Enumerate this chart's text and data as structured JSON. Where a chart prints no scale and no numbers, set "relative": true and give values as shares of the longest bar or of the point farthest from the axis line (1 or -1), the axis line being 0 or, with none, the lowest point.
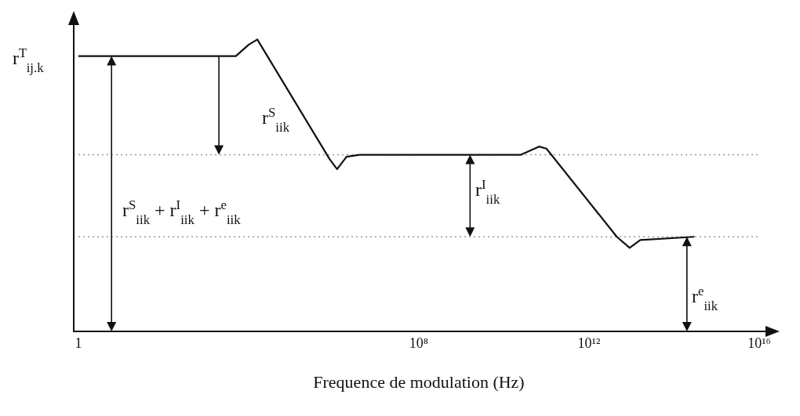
{
  "chart_data": {
    "type": "line",
    "relative": true,
    "xlabel": "Frequence de modulation (Hz)",
    "ylabel": "r$^{T}$$_{ij.k}$",
    "log": "x",
    "xlim": [
      1,
      1e+16
    ],
    "xticks": [
      1,
      {
        "value": 100000000.0,
        "label": "10⁸"
      },
      {
        "value": 1000000000000.0,
        "label": "10¹²"
      },
      {
        "value": 1e+16,
        "label": "10¹⁶"
      }
    ],
    "series": [
      {
        "color": "#111111",
        "x": [
          1,
          5000,
          10000,
          16000,
          800000,
          1200000,
          2000000,
          4000000,
          25000000000,
          68000000000,
          100000000000,
          4500000000000,
          9000000000000,
          16000000000000,
          300000000000000
        ],
        "values": [
          0.943,
          0.943,
          0.982,
          1,
          0.59,
          0.556,
          0.598,
          0.605,
          0.605,
          0.633,
          0.626,
          0.324,
          0.286,
          0.313,
          0.324
        ]
      }
    ],
    "ref_lines": [
      {
        "axis": "y",
        "value": 0.605,
        "line_style": "dotted",
        "color": "#999999"
      },
      {
        "axis": "y",
        "value": 0.324,
        "line_style": "dotted",
        "color": "#999999"
      }
    ],
    "annotations": [
      "r$^{S}$$_{iik}$",
      "r$^{S}$$_{iik}$ + r$^{I}$$_{iik}$ + r$^{e}$$_{iik}$",
      "r$^{I}$$_{iik}$",
      "r$^{e}$$_{iik}$"
    ],
    "grid": false,
    "legend": false,
    "marker": "none",
    "line_style": "solid"
  }
}
